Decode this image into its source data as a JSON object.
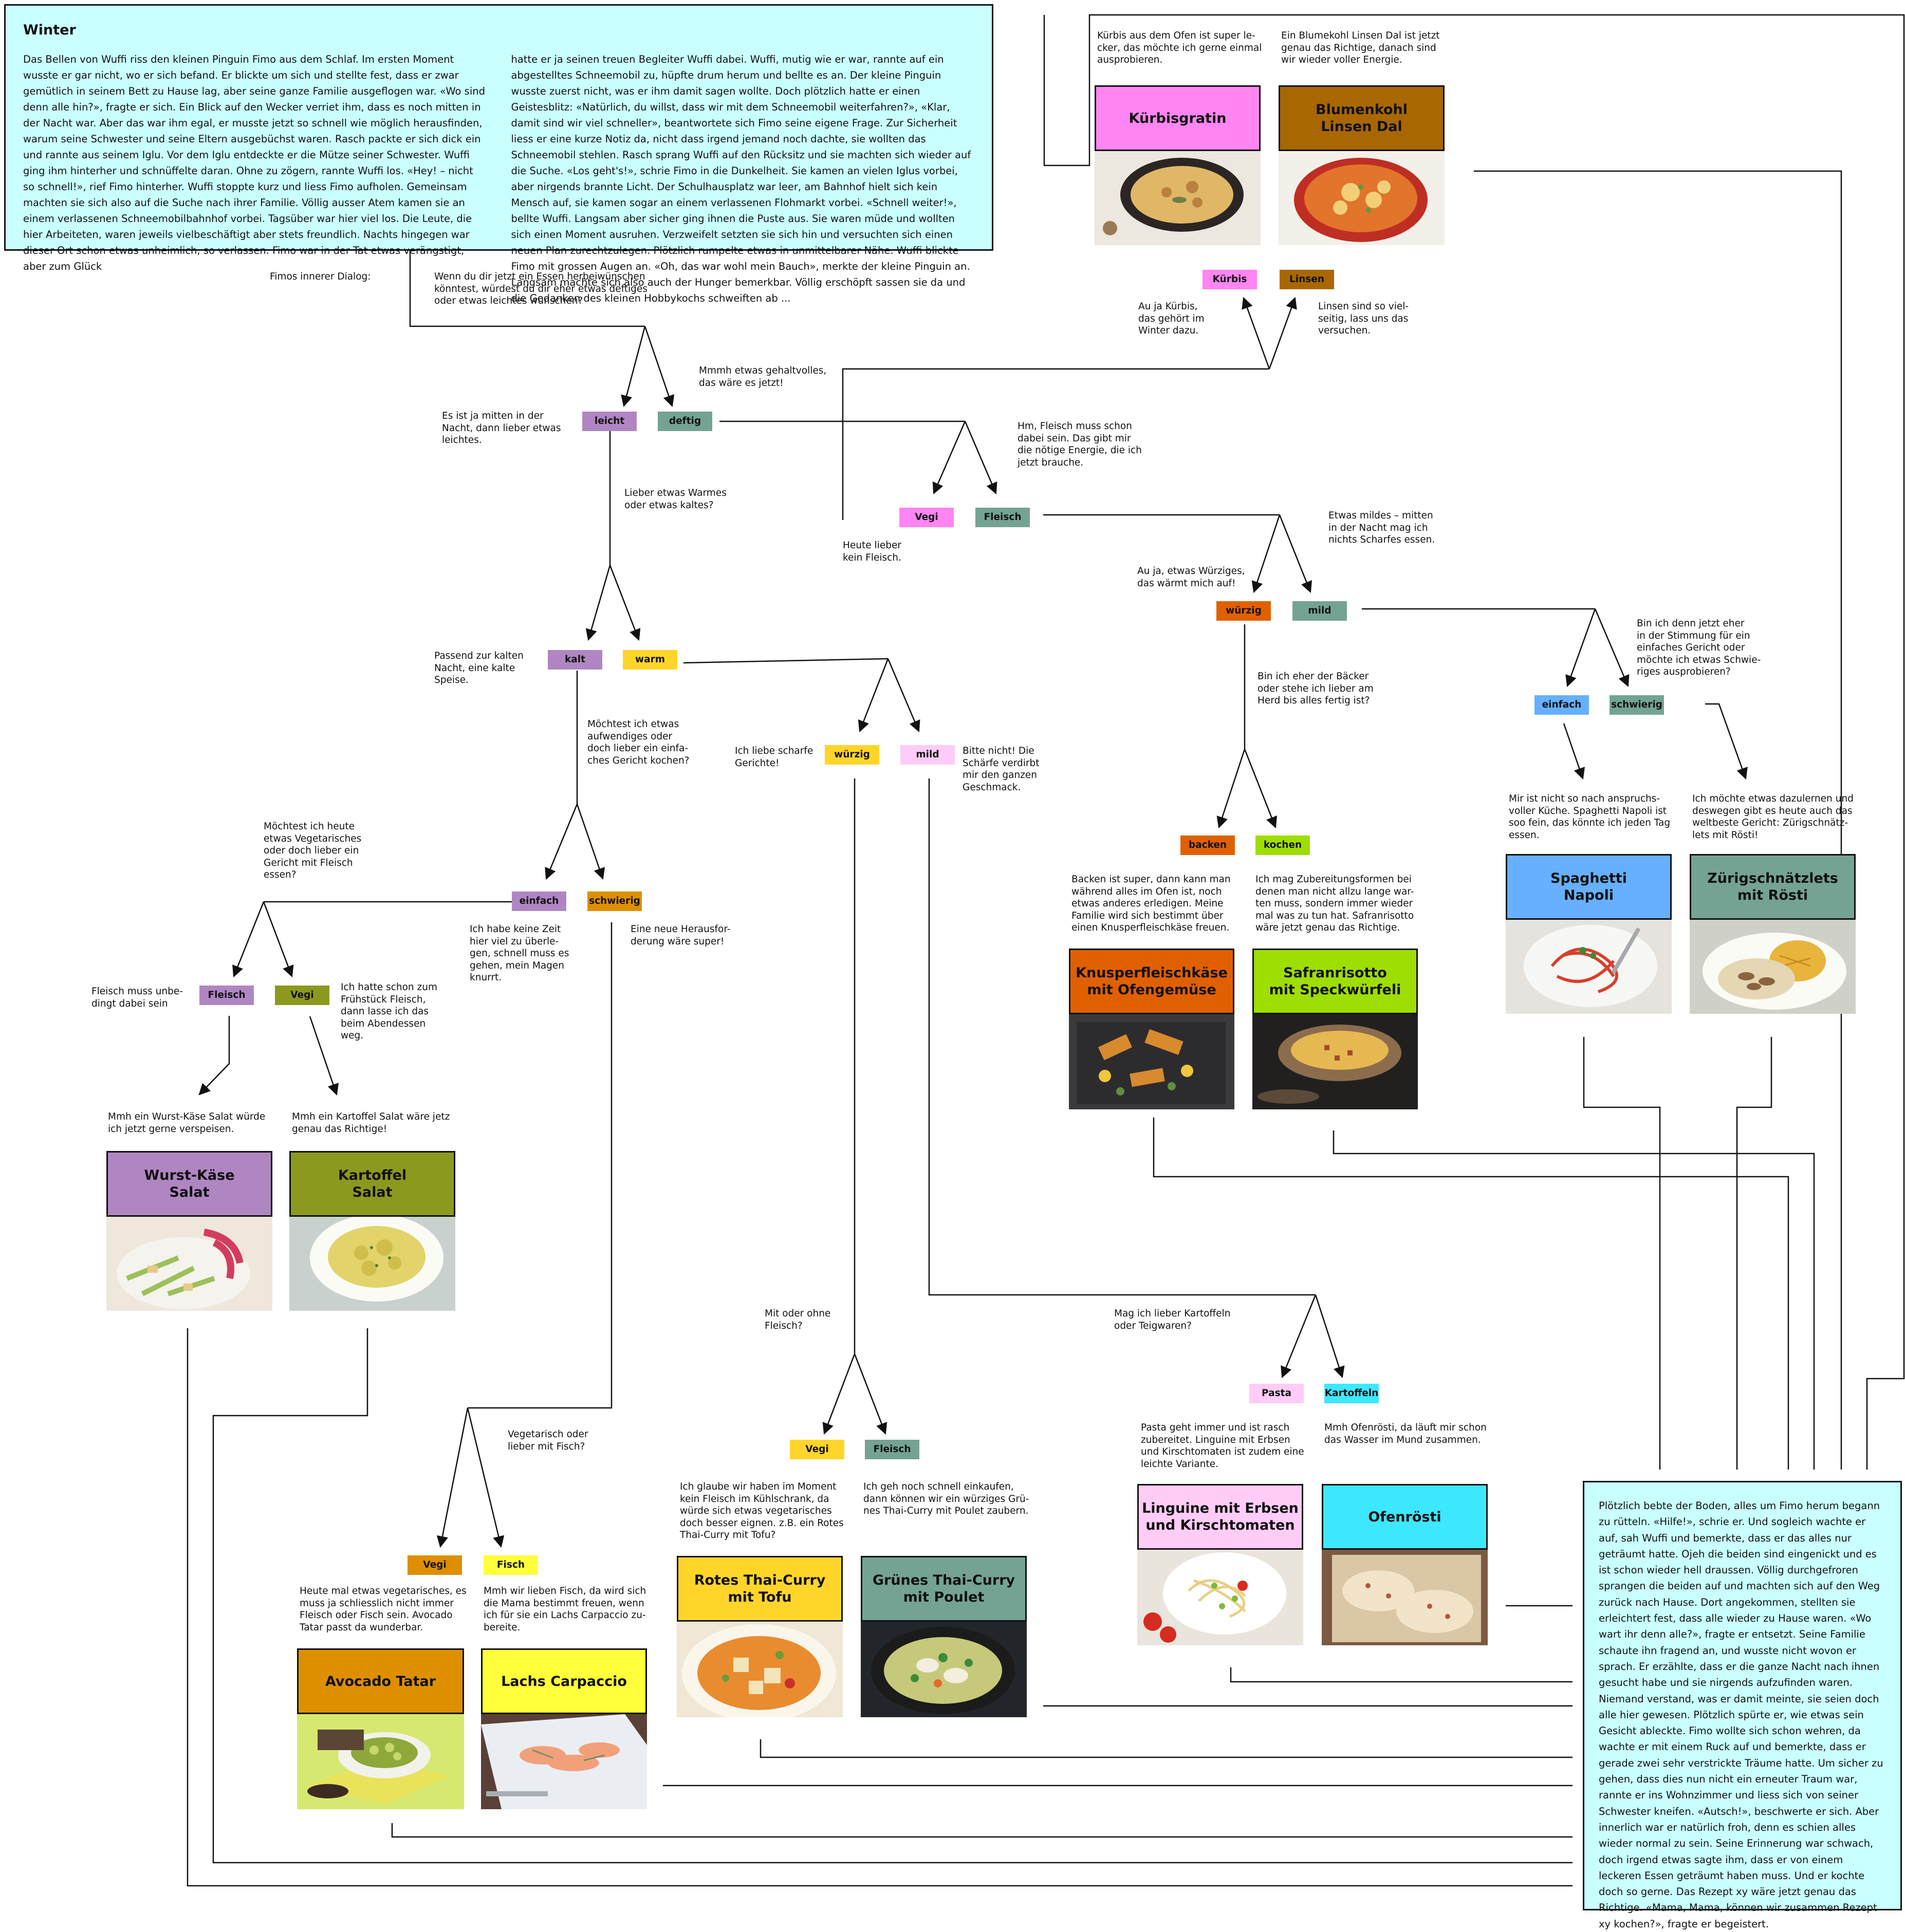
{
  "story_top": {
    "title": "Winter",
    "col1": "Das Bellen von Wuffi riss den kleinen Pinguin Fimo aus dem Schlaf. Im ersten Moment wusste er gar nicht, wo er sich befand. Er blickte um sich und stellte fest, dass er zwar gemütlich in seinem Bett zu Hause lag, aber seine ganze Familie ausgeflogen war. «Wo sind denn alle hin?», fragte er sich. Ein Blick auf den Wecker verriet ihm, dass es noch mitten in der Nacht war. Aber das war ihm egal, er musste jetzt so schnell wie möglich herausfinden, warum seine Schwester und seine Eltern ausgebüchst waren. Rasch packte er sich dick ein und rannte aus seinem Iglu. Vor dem Iglu entdeckte er die Mütze seiner Schwester. Wuffi ging ihm hinterher und schnüffelte daran. Ohne zu zögern, rannte Wuffi los. «Hey! – nicht so schnell!», rief Fimo hinterher. Wuffi stoppte kurz und liess Fimo aufholen. Gemeinsam machten sie sich also auf die Suche nach ihrer Familie. Völlig ausser Atem kamen sie an einem verlassenen Schneemobilbahnhof vorbei. Tagsüber war hier viel los. Die Leute, die hier Arbeiteten, waren jeweils vielbeschäftigt aber stets freundlich. Nachts hingegen war dieser Ort schon etwas unheimlich, so verlassen. Fimo war in der Tat etwas verängstigt, aber zum Glück",
    "col2": "hatte er ja seinen treuen Begleiter Wuffi dabei. Wuffi, mutig wie er war, rannte auf ein abgestelltes Schneemobil zu, hüpfte drum herum und bellte es an. Der kleine Pinguin wusste zuerst nicht, was er ihm damit sagen wollte. Doch plötzlich hatte er einen Geistesblitz: «Natürlich, du willst, dass wir mit dem Schneemobil weiterfahren?», «Klar, damit sind wir viel schneller», beantwortete sich Fimo seine eigene Frage. Zur Sicherheit liess er eine kurze Notiz da, nicht dass irgend jemand noch dachte, sie wollten das Schneemobil stehlen. Rasch sprang Wuffi auf den Rücksitz und sie machten sich wieder auf die Suche. «Los geht's!», schrie Fimo in die Dunkelheit. Sie kamen an vielen Iglus vorbei, aber nirgends brannte Licht. Der Schulhausplatz war leer, am Bahnhof hielt sich kein Mensch auf, sie kamen sogar an einem verlassenen Flohmarkt vorbei. «Schnell weiter!», bellte Wuffi. Langsam aber sicher ging ihnen die Puste aus. Sie waren müde und wollten sich einen Moment ausruhen. Verzweifelt setzten sie sich hin und versuchten sich einen neuen Plan zurechtzulegen. Plötzlich rumpelte etwas in unmittelbarer Nähe. Wuffi blickte Fimo mit grossen Augen an. «Oh, das war wohl mein Bauch», merkte der kleine Pinguin an. Langsam machte sich also auch der Hunger bemerkbar. Völlig erschöpft sassen sie da und die Gedanken des kleinen Hobbykochs schweiften ab ..."
  },
  "story_end": "Plötzlich bebte der Boden, alles um Fimo herum begann zu rütteln. «Hilfe!», schrie er. Und sogleich wachte er auf, sah Wuffi und bemerkte, dass er das alles nur geträumt hatte. Ojeh die beiden sind eingenickt und es ist schon wieder hell draussen. Völlig durchgefroren sprangen die beiden auf und machten sich auf den Weg zurück nach Hause. Dort angekommen, stellten sie erleichtert fest, dass alle wieder zu Hause waren. «Wo wart ihr denn alle?», fragte er entsetzt. Seine Familie schaute ihn fragend an, und wusste nicht wovon er sprach. Er erzählte, dass er die ganze Nacht nach ihnen gesucht habe und sie nirgends aufzufinden waren. Niemand verstand, was er damit meinte, sie seien doch alle hier gewesen. Plötzlich spürte er, wie etwas sein Gesicht ableckte. Fimo wollte sich schon wehren, da wachte er mit einem Ruck auf und bemerkte, dass er gerade zwei sehr verstrickte Träume hatte. Um sicher zu gehen, dass dies nun nicht ein erneuter Traum war, rannte er ins Wohnzimmer und liess sich von seiner Schwester kneifen. «Autsch!», beschwerte er sich. Aber innerlich war er natürlich froh, denn es schien alles wieder normal zu sein. Seine Erinnerung war schwach, doch irgend etwas sagte ihm, dass er von einem leckeren Essen geträumt haben muss. Und er kochte doch so gerne. Das Rezept xy wäre jetzt genau das Richtige. «Mama, Mama, können wir zusammen Rezept xy kochen?», fragte er begeistert.",
  "notes": {
    "inner_dialog": "Fimos innerer Dialog:",
    "q_start": "Wenn du dir jetzt ein Essen herbeiwünschen\nkönntest, würdest du dir eher etwas deftiges\noder etwas leichtes wünschen?",
    "leicht_reason": "Es ist ja mitten in der\nNacht, dann lieber etwas\nleichtes.",
    "deftig_reason": "Mmmh etwas gehaltvolles,\ndas wäre es jetzt!",
    "q_warm_kalt": "Lieber etwas Warmes\noder etwas kaltes?",
    "kalt_reason": "Passend zur kalten\nNacht, eine kalte\nSpeise.",
    "q_aufwand": "Möchtest ich etwas\naufwendiges oder\ndoch lieber ein einfa-\nches Gericht kochen?",
    "q_vegi_fleisch_left": "Möchtest ich heute\netwas Vegetarisches\noder doch lieber ein\nGericht mit Fleisch\nessen?",
    "einfach_reason": "Ich habe keine Zeit\nhier viel zu überle-\ngen, schnell muss es\ngehen, mein Magen\nknurrt.",
    "schwierig_reason": "Eine neue Herausfor-\nderung wäre super!",
    "fleisch_left_reason": "Fleisch muss unbe-\ndingt dabei sein",
    "vegi_left_reason": "Ich hatte schon zum\nFrühstück Fleisch,\ndann lasse ich das\nbeim Abendessen\nweg.",
    "wurst_reason": "Mmh ein Wurst-Käse Salat würde\nich jetzt gerne verspeisen.",
    "kartoffel_reason": "Mmh ein Kartoffel Salat wäre jetz\ngenau das Richtige!",
    "wuerzig_reason": "Ich liebe scharfe\nGerichte!",
    "mild_reason": "Bitte nicht! Die\nSchärfe verdirbt\nmir den ganzen\nGeschmack.",
    "q_vegi_fisch": "Vegetarisch oder\nlieber mit Fisch?",
    "avocado_reason": "Heute mal etwas vegetarisches, es\nmuss ja schliesslich nicht immer\nFleisch oder Fisch sein. Avocado\nTatar passt da wunderbar.",
    "lachs_reason": "Mmh wir lieben Fisch, da wird sich\ndie Mama bestimmt freuen, wenn\nich für sie ein Lachs Carpaccio zu-\nbereite.",
    "q_mit_ohne": "Mit oder ohne\nFleisch?",
    "tofu_reason": "Ich glaube wir haben im Moment\nkein Fleisch im Kühlschrank, da\nwürde sich etwas vegetarisches\ndoch besser eignen. z.B. ein Rotes\nThai-Curry mit Tofu?",
    "poulet_reason": "Ich geh noch schnell einkaufen,\ndann können wir ein würziges Grü-\nnes Thai-Curry mit Poulet zaubern.",
    "q_kartoffel_teig": "Mag ich lieber Kartoffeln\noder Teigwaren?",
    "pasta_reason": "Pasta geht immer und ist rasch\nzubereitet. Linguine mit Erbsen\nund Kirschtomaten ist zudem eine\nleichte Variante.",
    "ofen_reason": "Mmh Ofenrösti, da läuft mir schon\ndas Wasser im Mund zusammen.",
    "kuerbis_intro": "Kürbis aus dem Ofen ist super le-\ncker, das möchte ich gerne einmal\nausprobieren.",
    "blumenkohl_intro": "Ein Blumekohl Linsen Dal ist jetzt\ngenau das Richtige, danach sind\nwir wieder voller Energie.",
    "kuerbis_reason": "Au ja Kürbis,\ndas gehört im\nWinter dazu.",
    "linsen_reason": "Linsen sind so viel-\nseitig, lass uns das\nversuchen.",
    "fleisch_mid_reason": "Hm, Fleisch muss schon\ndabei sein. Das gibt mir\ndie nötige Energie, die ich\njetzt brauche.",
    "vegi_mid_reason": "Heute lieber\nkein Fleisch.",
    "mild_right_reason": "Etwas mildes – mitten\nin der Nacht mag ich\nnichts Scharfes essen.",
    "wuerzig_right_reason": "Au ja, etwas Würziges,\ndas wärmt mich auf!",
    "q_baecker": "Bin ich eher der Bäcker\noder stehe ich lieber am\nHerd bis alles fertig ist?",
    "backen_reason": "Backen ist super, dann kann man\nwährend alles im Ofen ist, noch\netwas anderes erledigen. Meine\nFamilie wird sich bestimmt über\neinen Knusperfleischkäse freuen.",
    "kochen_reason": "Ich mag Zubereitungsformen bei\ndenen man nicht allzu lange war-\nten muss, sondern immer wieder\nmal was zu tun hat. Safranrisotto\nwäre jetzt genau das Richtige.",
    "q_stimmung": "Bin ich denn jetzt eher\nin der Stimmung für ein\neinfaches Gericht oder\nmöchte ich etwas Schwie-\nriges ausprobieren?",
    "napoli_reason": "Mir ist nicht so nach anspruchs-\nvoller Küche. Spaghetti Napoli ist\nsoo fein, das könnte ich jeden Tag\nessen.",
    "roesti_reason": "Ich möchte etwas dazulernen und\ndeswegen gibt es heute auch das\nweltbeste Gericht: Zürigschnätz-\nlets mit Rösti!"
  },
  "tags": {
    "leicht": "leicht",
    "deftig": "deftig",
    "kalt": "kalt",
    "warm": "warm",
    "einfach_left": "einfach",
    "schwierig_left": "schwierig",
    "fleisch_left": "Fleisch",
    "vegi_left": "Vegi",
    "wuerzig_mid": "würzig",
    "mild_mid": "mild",
    "vegi_fisch": "Vegi",
    "fisch": "Fisch",
    "vegi_curry": "Vegi",
    "fleisch_curry": "Fleisch",
    "pasta": "Pasta",
    "kartoffeln": "Kartoffeln",
    "vegi_mid": "Vegi",
    "fleisch_mid": "Fleisch",
    "kuerbis": "Kürbis",
    "linsen": "Linsen",
    "wuerzig_right": "würzig",
    "mild_right": "mild",
    "backen": "backen",
    "kochen": "kochen",
    "einfach_right": "einfach",
    "schwierig_right": "schwierig"
  },
  "dishes": {
    "wurst": "Wurst-Käse\nSalat",
    "kartoffel": "Kartoffel\nSalat",
    "avocado": "Avocado Tatar",
    "lachs": "Lachs Carpaccio",
    "tofu": "Rotes Thai-Curry\nmit Tofu",
    "poulet": "Grünes Thai-Curry\nmit Poulet",
    "linguine": "Linguine mit Erbsen\nund Kirschtomaten",
    "ofenroesti": "Ofenrösti",
    "kuerbisgratin": "Kürbisgratin",
    "blumenkohl": "Blumenkohl\nLinsen Dal",
    "knusper": "Knusperfleischkäse\nmit Ofengemüse",
    "safran": "Safranrisotto\nmit Speckwürfeli",
    "napoli": "Spaghetti\nNapoli",
    "zuerich": "Zürigschnätzlets\nmit Rösti"
  },
  "colors": {
    "story_bg": "#c9ffff",
    "purple": "#b086c2",
    "sage": "#74a393",
    "yellow": "#ffd52a",
    "pink": "#ffccf7",
    "magenta": "#ff85f2",
    "olive": "#8c991f",
    "orange_dark": "#e06000",
    "lime": "#9fde03",
    "amber": "#de8f00",
    "lemon": "#ffff3b",
    "brown": "#a86700",
    "sky": "#66b0ff",
    "cyan": "#3de8ff"
  }
}
